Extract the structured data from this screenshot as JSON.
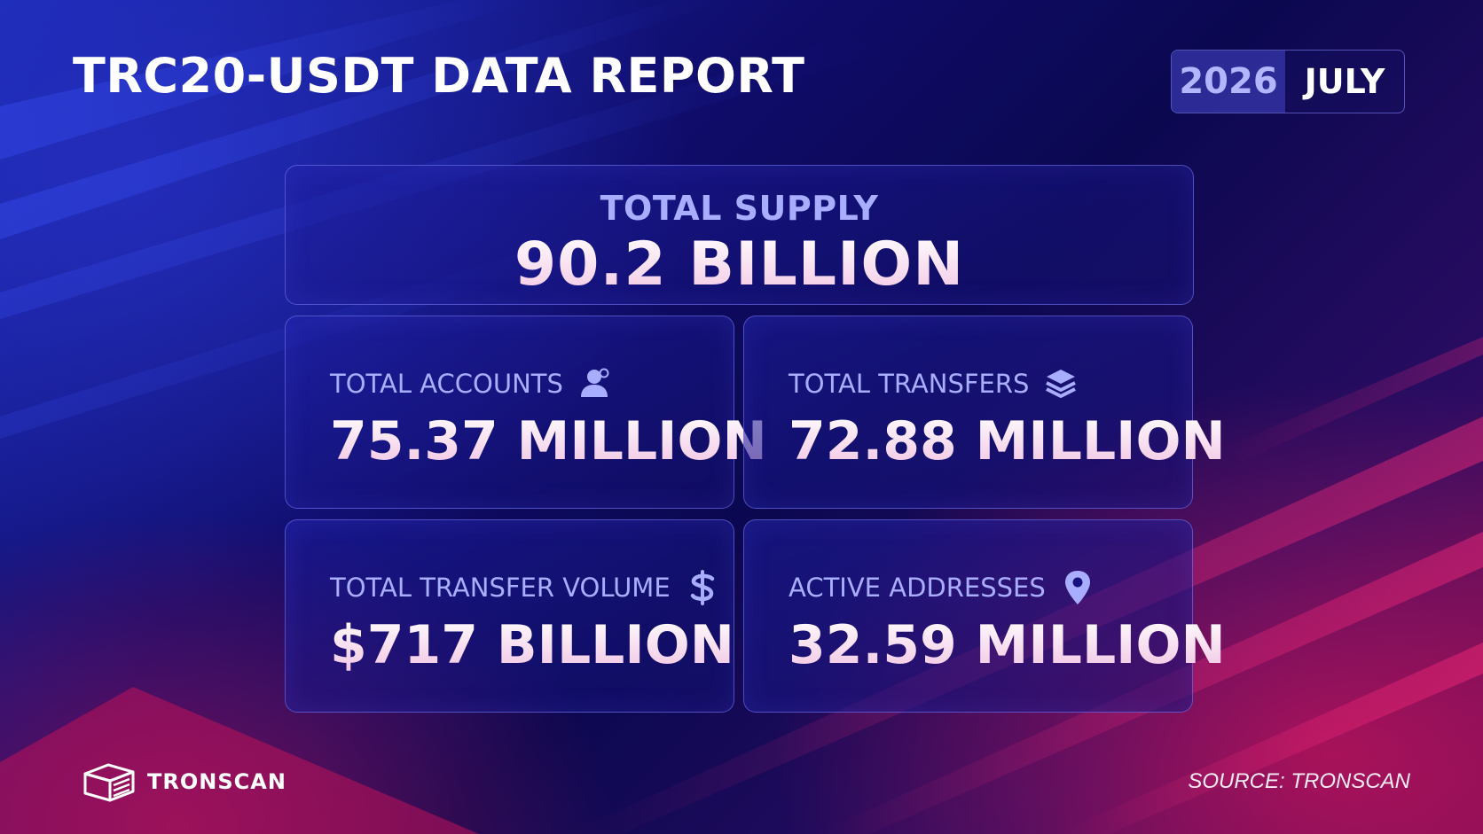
{
  "header": {
    "title": "TRC20-USDT DATA REPORT",
    "date": {
      "year": "2026",
      "month": "JULY"
    }
  },
  "supply": {
    "label": "TOTAL SUPPLY",
    "value": "90.2 BILLION"
  },
  "stats": [
    {
      "label": "TOTAL ACCOUNTS",
      "value": "75.37 MILLION",
      "icon": "user-icon"
    },
    {
      "label": "TOTAL TRANSFERS",
      "value": "72.88 MILLION",
      "icon": "layers-icon"
    },
    {
      "label": "TOTAL TRANSFER VOLUME",
      "value": "$717 BILLION",
      "icon": "dollar-icon"
    },
    {
      "label": "ACTIVE ADDRESSES",
      "value": "32.59 MILLION",
      "icon": "location-pin-icon"
    }
  ],
  "footer": {
    "brand": "TRONSCAN",
    "source": "SOURCE: TRONSCAN"
  },
  "colors": {
    "accent_label": "#a9adff",
    "value_gradient_end": "#f0c2e2",
    "background_blue": "#0f0c6a",
    "background_magenta": "#c8145a"
  }
}
